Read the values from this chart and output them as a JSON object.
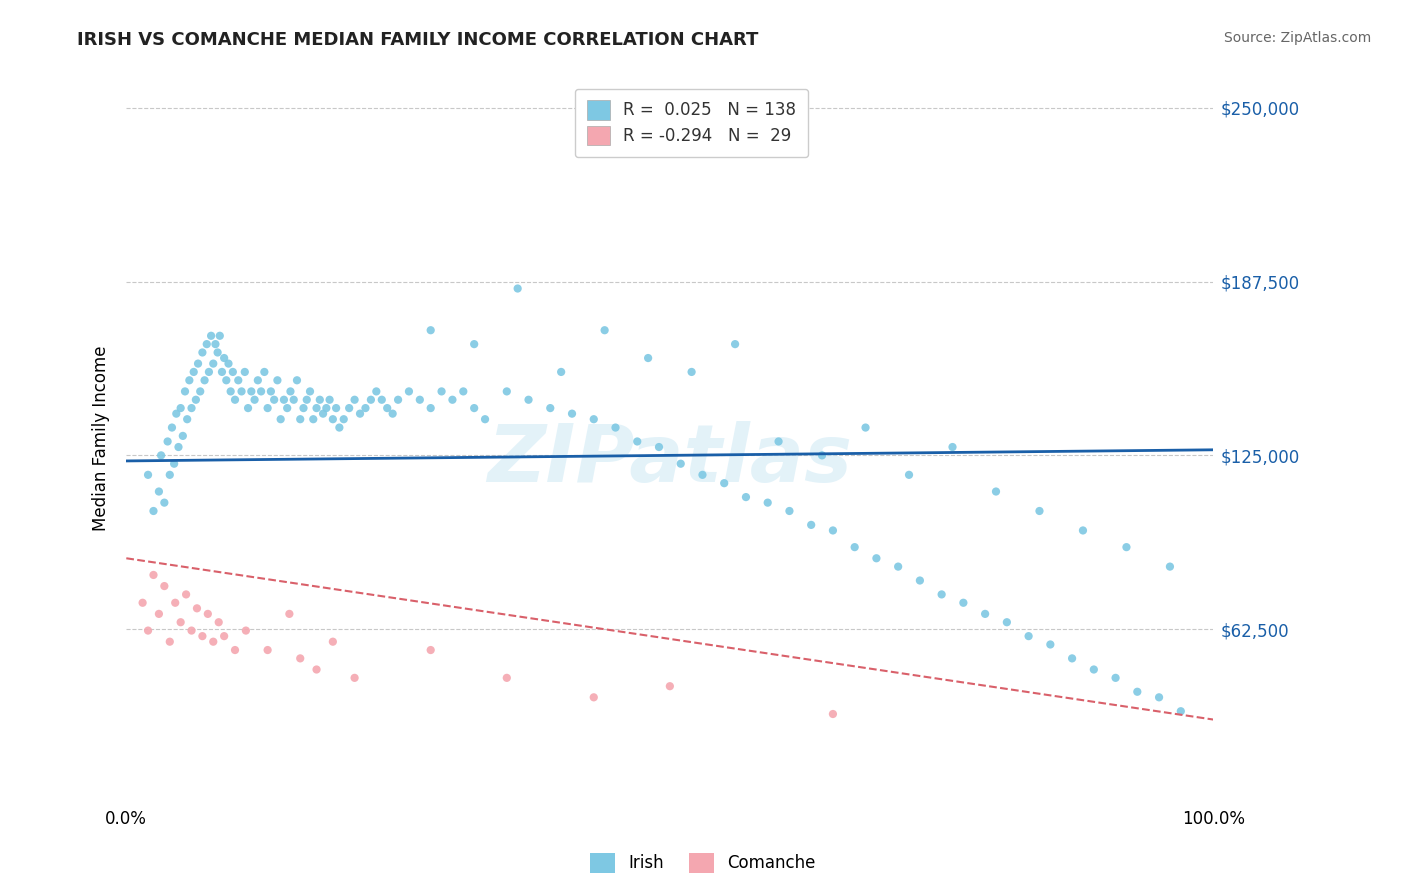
{
  "title": "IRISH VS COMANCHE MEDIAN FAMILY INCOME CORRELATION CHART",
  "source_text": "Source: ZipAtlas.com",
  "ylabel": "Median Family Income",
  "xlim": [
    0.0,
    1.0
  ],
  "ylim": [
    0,
    262500
  ],
  "yticks": [
    0,
    62500,
    125000,
    187500,
    250000
  ],
  "ytick_labels": [
    "",
    "$62,500",
    "$125,000",
    "$187,500",
    "$250,000"
  ],
  "xtick_labels": [
    "0.0%",
    "100.0%"
  ],
  "blue_color": "#7ec8e3",
  "blue_line_color": "#1a5fa8",
  "pink_color": "#f4a7b0",
  "pink_line_color": "#d9606a",
  "irish_R": 0.025,
  "irish_N": 138,
  "comanche_R": -0.294,
  "comanche_N": 29,
  "watermark": "ZIPatlas",
  "irish_x": [
    0.02,
    0.025,
    0.03,
    0.032,
    0.035,
    0.038,
    0.04,
    0.042,
    0.044,
    0.046,
    0.048,
    0.05,
    0.052,
    0.054,
    0.056,
    0.058,
    0.06,
    0.062,
    0.064,
    0.066,
    0.068,
    0.07,
    0.072,
    0.074,
    0.076,
    0.078,
    0.08,
    0.082,
    0.084,
    0.086,
    0.088,
    0.09,
    0.092,
    0.094,
    0.096,
    0.098,
    0.1,
    0.103,
    0.106,
    0.109,
    0.112,
    0.115,
    0.118,
    0.121,
    0.124,
    0.127,
    0.13,
    0.133,
    0.136,
    0.139,
    0.142,
    0.145,
    0.148,
    0.151,
    0.154,
    0.157,
    0.16,
    0.163,
    0.166,
    0.169,
    0.172,
    0.175,
    0.178,
    0.181,
    0.184,
    0.187,
    0.19,
    0.193,
    0.196,
    0.2,
    0.205,
    0.21,
    0.215,
    0.22,
    0.225,
    0.23,
    0.235,
    0.24,
    0.245,
    0.25,
    0.26,
    0.27,
    0.28,
    0.29,
    0.3,
    0.31,
    0.32,
    0.33,
    0.35,
    0.37,
    0.39,
    0.41,
    0.43,
    0.45,
    0.47,
    0.49,
    0.51,
    0.53,
    0.55,
    0.57,
    0.59,
    0.61,
    0.63,
    0.65,
    0.67,
    0.69,
    0.71,
    0.73,
    0.75,
    0.77,
    0.79,
    0.81,
    0.83,
    0.85,
    0.87,
    0.89,
    0.91,
    0.93,
    0.95,
    0.97,
    0.28,
    0.32,
    0.36,
    0.4,
    0.44,
    0.48,
    0.52,
    0.56,
    0.6,
    0.64,
    0.68,
    0.72,
    0.76,
    0.8,
    0.84,
    0.88,
    0.92,
    0.96
  ],
  "irish_y": [
    118000,
    105000,
    112000,
    125000,
    108000,
    130000,
    118000,
    135000,
    122000,
    140000,
    128000,
    142000,
    132000,
    148000,
    138000,
    152000,
    142000,
    155000,
    145000,
    158000,
    148000,
    162000,
    152000,
    165000,
    155000,
    168000,
    158000,
    165000,
    162000,
    168000,
    155000,
    160000,
    152000,
    158000,
    148000,
    155000,
    145000,
    152000,
    148000,
    155000,
    142000,
    148000,
    145000,
    152000,
    148000,
    155000,
    142000,
    148000,
    145000,
    152000,
    138000,
    145000,
    142000,
    148000,
    145000,
    152000,
    138000,
    142000,
    145000,
    148000,
    138000,
    142000,
    145000,
    140000,
    142000,
    145000,
    138000,
    142000,
    135000,
    138000,
    142000,
    145000,
    140000,
    142000,
    145000,
    148000,
    145000,
    142000,
    140000,
    145000,
    148000,
    145000,
    142000,
    148000,
    145000,
    148000,
    142000,
    138000,
    148000,
    145000,
    142000,
    140000,
    138000,
    135000,
    130000,
    128000,
    122000,
    118000,
    115000,
    110000,
    108000,
    105000,
    100000,
    98000,
    92000,
    88000,
    85000,
    80000,
    75000,
    72000,
    68000,
    65000,
    60000,
    57000,
    52000,
    48000,
    45000,
    40000,
    38000,
    33000,
    170000,
    165000,
    185000,
    155000,
    170000,
    160000,
    155000,
    165000,
    130000,
    125000,
    135000,
    118000,
    128000,
    112000,
    105000,
    98000,
    92000,
    85000
  ],
  "comanche_x": [
    0.015,
    0.02,
    0.025,
    0.03,
    0.035,
    0.04,
    0.045,
    0.05,
    0.055,
    0.06,
    0.065,
    0.07,
    0.075,
    0.08,
    0.085,
    0.09,
    0.1,
    0.11,
    0.13,
    0.15,
    0.16,
    0.175,
    0.19,
    0.21,
    0.28,
    0.35,
    0.43,
    0.5,
    0.65
  ],
  "comanche_y": [
    72000,
    62000,
    82000,
    68000,
    78000,
    58000,
    72000,
    65000,
    75000,
    62000,
    70000,
    60000,
    68000,
    58000,
    65000,
    60000,
    55000,
    62000,
    55000,
    68000,
    52000,
    48000,
    58000,
    45000,
    55000,
    45000,
    38000,
    42000,
    32000
  ]
}
